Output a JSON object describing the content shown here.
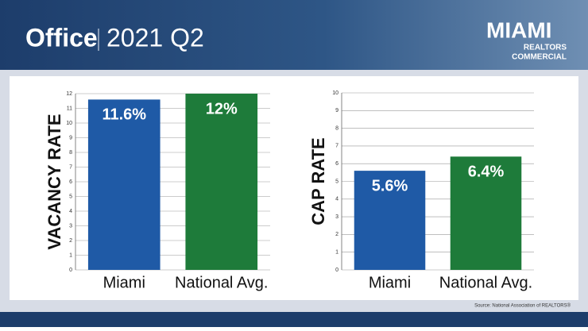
{
  "header": {
    "title": "Office",
    "subtitle": "2021 Q2",
    "logo": "MIAMI",
    "logo_sub1": "REALTORS",
    "logo_sub2": "COMMERCIAL"
  },
  "chart_data": [
    {
      "type": "bar",
      "ylabel": "VACANCY RATE",
      "categories": [
        "Miami",
        "National Avg."
      ],
      "values": [
        11.6,
        12
      ],
      "value_labels": [
        "11.6%",
        "12%"
      ],
      "colors": [
        "#1f5aa6",
        "#1e7b3a"
      ],
      "ylim": [
        0,
        12
      ],
      "yticks": [
        0,
        1,
        2,
        3,
        4,
        5,
        6,
        7,
        8,
        9,
        10,
        11,
        12
      ],
      "grid": true
    },
    {
      "type": "bar",
      "ylabel": "CAP RATE",
      "categories": [
        "Miami",
        "National Avg."
      ],
      "values": [
        5.6,
        6.4
      ],
      "value_labels": [
        "5.6%",
        "6.4%"
      ],
      "colors": [
        "#1f5aa6",
        "#1e7b3a"
      ],
      "ylim": [
        0,
        10
      ],
      "yticks": [
        0,
        1,
        2,
        3,
        4,
        5,
        6,
        7,
        8,
        9,
        10
      ],
      "grid": true
    }
  ],
  "source": "Source: National Association of REALTORS®"
}
